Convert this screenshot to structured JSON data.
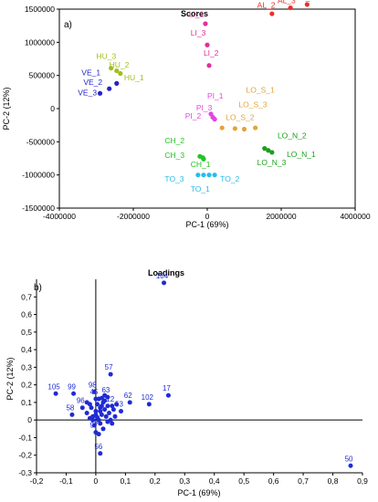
{
  "chart_data": [
    {
      "type": "scatter",
      "panel": "a)",
      "title": "Scores",
      "xlabel": "PC-1 (69%)",
      "ylabel": "PC-2 (12%)",
      "xlim": [
        -4000000,
        4000000
      ],
      "ylim": [
        -1500000,
        1500000
      ],
      "xticks": [
        -4000000,
        -2000000,
        0,
        2000000,
        4000000
      ],
      "yticks": [
        -1500000,
        -1000000,
        -500000,
        0,
        500000,
        1000000,
        1500000
      ],
      "x_tick_labels": [
        "-4000000",
        "-2000000",
        "0",
        "2000000",
        "4000000"
      ],
      "y_tick_labels": [
        "-1500000",
        "-1000000",
        "-500000",
        "0",
        "500000",
        "1000000",
        "1500000"
      ],
      "groups": [
        {
          "color": "#ef2b2b",
          "points": [
            [
              2250000,
              1520000
            ],
            [
              2700000,
              1570000
            ],
            [
              1750000,
              1430000
            ]
          ],
          "labels": [
            {
              "text": "AL_2",
              "x": 1350000,
              "y": 1520000
            },
            {
              "text": "AL_3",
              "x": 1900000,
              "y": 1590000
            },
            {
              "text": "AL_1",
              "x": 2400000,
              "y": 1640000
            }
          ]
        },
        {
          "color": "#e0309a",
          "points": [
            [
              -50000,
              1280000
            ],
            [
              0,
              960000
            ],
            [
              50000,
              650000
            ]
          ],
          "labels": [
            {
              "text": "LI_1",
              "x": -500000,
              "y": 1380000
            },
            {
              "text": "LI_3",
              "x": -450000,
              "y": 1100000
            },
            {
              "text": "LI_2",
              "x": -100000,
              "y": 800000
            }
          ]
        },
        {
          "color": "#9fbf1b",
          "points": [
            [
              -2600000,
              610000
            ],
            [
              -2450000,
              570000
            ],
            [
              -2350000,
              530000
            ]
          ],
          "labels": [
            {
              "text": "HU_3",
              "x": -3000000,
              "y": 750000
            },
            {
              "text": "HU_2",
              "x": -2650000,
              "y": 620000
            },
            {
              "text": "HU_1",
              "x": -2250000,
              "y": 430000
            }
          ]
        },
        {
          "color": "#2323c8",
          "points": [
            [
              -2450000,
              380000
            ],
            [
              -2650000,
              300000
            ],
            [
              -2900000,
              230000
            ]
          ],
          "labels": [
            {
              "text": "VE_1",
              "x": -3400000,
              "y": 500000
            },
            {
              "text": "VE_2",
              "x": -3350000,
              "y": 360000
            },
            {
              "text": "VE_3",
              "x": -3500000,
              "y": 200000
            }
          ]
        },
        {
          "color": "#e543e5",
          "points": [
            [
              100000,
              -80000
            ],
            [
              150000,
              -130000
            ],
            [
              200000,
              -160000
            ]
          ],
          "labels": [
            {
              "text": "PI_1",
              "x": 0,
              "y": 150000
            },
            {
              "text": "PI_3",
              "x": -300000,
              "y": -30000
            },
            {
              "text": "PI_2",
              "x": -600000,
              "y": -150000
            }
          ]
        },
        {
          "color": "#e3a43a",
          "points": [
            [
              400000,
              -290000
            ],
            [
              750000,
              -300000
            ],
            [
              1000000,
              -310000
            ],
            [
              1300000,
              -290000
            ]
          ],
          "labels": [
            {
              "text": "LO_S_1",
              "x": 1050000,
              "y": 240000
            },
            {
              "text": "LO_S_3",
              "x": 850000,
              "y": 20000
            },
            {
              "text": "LO_S_2",
              "x": 500000,
              "y": -170000
            }
          ]
        },
        {
          "color": "#1aa01a",
          "points": [
            [
              1550000,
              -600000
            ],
            [
              1650000,
              -630000
            ],
            [
              1750000,
              -660000
            ]
          ],
          "labels": [
            {
              "text": "LO_N_2",
              "x": 1900000,
              "y": -450000
            },
            {
              "text": "LO_N_1",
              "x": 2150000,
              "y": -730000
            },
            {
              "text": "LO_N_3",
              "x": 1350000,
              "y": -850000
            }
          ]
        },
        {
          "color": "#22c422",
          "points": [
            [
              -200000,
              -720000
            ],
            [
              -120000,
              -740000
            ],
            [
              -100000,
              -760000
            ]
          ],
          "labels": [
            {
              "text": "CH_2",
              "x": -1150000,
              "y": -520000
            },
            {
              "text": "CH_3",
              "x": -1150000,
              "y": -740000
            },
            {
              "text": "CH_1",
              "x": -450000,
              "y": -880000
            }
          ]
        },
        {
          "color": "#29bde8",
          "points": [
            [
              -250000,
              -1000000
            ],
            [
              -100000,
              -1000000
            ],
            [
              50000,
              -1000000
            ],
            [
              200000,
              -1000000
            ]
          ],
          "labels": [
            {
              "text": "TO_3",
              "x": -1150000,
              "y": -1100000
            },
            {
              "text": "TO_2",
              "x": 350000,
              "y": -1100000
            },
            {
              "text": "TO_1",
              "x": -450000,
              "y": -1250000
            }
          ]
        }
      ]
    },
    {
      "type": "scatter",
      "panel": "b)",
      "title": "Loadings",
      "xlabel": "PC-1 (69%)",
      "ylabel": "PC-2 (12%)",
      "xlim": [
        -0.2,
        0.9
      ],
      "ylim": [
        -0.3,
        0.8
      ],
      "xticks": [
        -0.2,
        -0.1,
        0,
        0.1,
        0.2,
        0.3,
        0.4,
        0.5,
        0.6,
        0.7,
        0.8,
        0.9
      ],
      "yticks": [
        -0.3,
        -0.2,
        -0.1,
        0,
        0.1,
        0.2,
        0.3,
        0.4,
        0.5,
        0.6,
        0.7
      ],
      "x_tick_labels": [
        "-0,2",
        "-0,1",
        "0",
        "0,1",
        "0,2",
        "0,3",
        "0,4",
        "0,5",
        "0,6",
        "0,7",
        "0,8",
        "0,9"
      ],
      "y_tick_labels": [
        "-0,3",
        "-0,2",
        "-0,1",
        "0",
        "0,1",
        "0,2",
        "0,3",
        "0,4",
        "0,5",
        "0,6",
        "0,7"
      ],
      "color": "#1f2bd6",
      "labeled_points": [
        {
          "label": "104",
          "x": 0.23,
          "y": 0.78
        },
        {
          "label": "105",
          "x": -0.135,
          "y": 0.15
        },
        {
          "label": "99",
          "x": -0.075,
          "y": 0.15
        },
        {
          "label": "98",
          "x": -0.005,
          "y": 0.16
        },
        {
          "label": "57",
          "x": 0.05,
          "y": 0.26
        },
        {
          "label": "63",
          "x": 0.04,
          "y": 0.13
        },
        {
          "label": "17",
          "x": 0.245,
          "y": 0.14
        },
        {
          "label": "62",
          "x": 0.115,
          "y": 0.1
        },
        {
          "label": "102",
          "x": 0.18,
          "y": 0.09
        },
        {
          "label": "96",
          "x": -0.045,
          "y": 0.07
        },
        {
          "label": "58",
          "x": -0.08,
          "y": 0.03
        },
        {
          "label": "12",
          "x": 0.055,
          "y": 0.08
        },
        {
          "label": "53",
          "x": 0.085,
          "y": 0.05
        },
        {
          "label": "97",
          "x": 0.0,
          "y": -0.07
        },
        {
          "label": "56",
          "x": 0.015,
          "y": -0.19
        },
        {
          "label": "50",
          "x": 0.86,
          "y": -0.26
        },
        {
          "label": "45",
          "x": 0.0,
          "y": 0.12
        }
      ],
      "cluster_points": [
        [
          -0.01,
          0.02
        ],
        [
          0.0,
          0.05
        ],
        [
          0.01,
          0.0
        ],
        [
          0.02,
          0.03
        ],
        [
          -0.02,
          0.01
        ],
        [
          0.03,
          0.06
        ],
        [
          0.005,
          0.09
        ],
        [
          -0.015,
          0.07
        ],
        [
          0.025,
          0.1
        ],
        [
          0.035,
          0.02
        ],
        [
          0.045,
          0.04
        ],
        [
          0.015,
          -0.02
        ],
        [
          -0.005,
          -0.03
        ],
        [
          0.02,
          0.08
        ],
        [
          0.03,
          0.11
        ],
        [
          0.01,
          0.12
        ],
        [
          -0.02,
          0.09
        ],
        [
          0.05,
          0.0
        ],
        [
          0.06,
          0.06
        ],
        [
          0.04,
          -0.01
        ],
        [
          0.0,
          0.03
        ],
        [
          0.015,
          0.05
        ],
        [
          -0.03,
          0.04
        ],
        [
          0.025,
          -0.05
        ],
        [
          0.01,
          -0.08
        ],
        [
          0.065,
          0.02
        ],
        [
          0.07,
          0.09
        ],
        [
          -0.01,
          0.0
        ],
        [
          0.005,
          0.015
        ],
        [
          0.02,
          0.125
        ],
        [
          0.03,
          0.14
        ],
        [
          -0.03,
          0.1
        ],
        [
          0.04,
          0.08
        ],
        [
          0.055,
          -0.02
        ],
        [
          0.015,
          0.07
        ]
      ]
    }
  ]
}
